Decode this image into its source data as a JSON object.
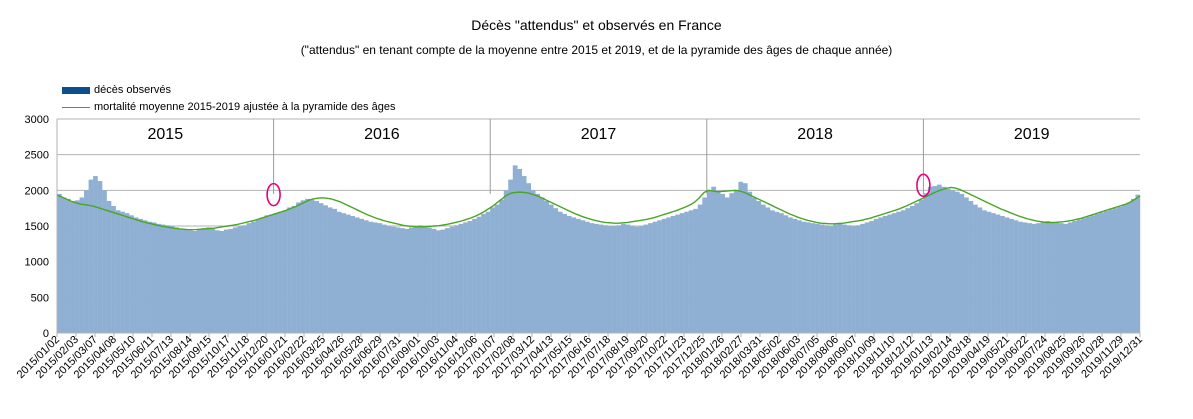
{
  "chart_data": {
    "type": "bar",
    "title": "Décès \"attendus\" et observés en France",
    "subtitle": "(\"attendus\" en tenant compte de la moyenne entre 2015 et 2019, et de la pyramide des âges de chaque année)",
    "xlabel": "",
    "ylabel": "",
    "ylim": [
      0,
      3000
    ],
    "yticks": [
      0,
      500,
      1000,
      1500,
      2000,
      2500,
      3000
    ],
    "grid": true,
    "legend_position": "top-left",
    "x_range": [
      "2015/01/02",
      "2019/12/31"
    ],
    "year_labels": [
      "2015",
      "2016",
      "2017",
      "2018",
      "2019"
    ],
    "x_tick_labels": [
      "2015/01/02",
      "2015/02/03",
      "2015/03/07",
      "2015/04/08",
      "2015/05/10",
      "2015/06/11",
      "2015/07/13",
      "2015/08/14",
      "2015/09/15",
      "2015/10/17",
      "2015/11/18",
      "2015/12/20",
      "2016/01/21",
      "2016/02/22",
      "2016/03/25",
      "2016/04/26",
      "2016/05/28",
      "2016/06/29",
      "2016/07/31",
      "2016/09/01",
      "2016/10/03",
      "2016/11/04",
      "2016/12/06",
      "2017/01/07",
      "2017/02/08",
      "2017/03/12",
      "2017/04/13",
      "2017/05/15",
      "2017/06/16",
      "2017/07/18",
      "2017/08/19",
      "2017/09/20",
      "2017/10/22",
      "2017/11/23",
      "2017/12/25",
      "2018/01/26",
      "2018/02/27",
      "2018/03/31",
      "2018/05/02",
      "2018/06/03",
      "2018/07/05",
      "2018/08/06",
      "2018/09/07",
      "2018/10/09",
      "2018/11/10",
      "2018/12/12",
      "2019/01/13",
      "2019/02/14",
      "2019/03/18",
      "2019/04/19",
      "2019/05/21",
      "2019/06/22",
      "2019/07/24",
      "2019/08/25",
      "2019/09/26",
      "2019/10/28",
      "2019/11/29",
      "2019/12/31"
    ],
    "series": [
      {
        "name": "décès observés",
        "type": "bar",
        "color": "#0b4f8c",
        "bar_fill": "#8fb0d3",
        "weekly_values": [
          1950,
          1900,
          1880,
          1850,
          1860,
          1900,
          2000,
          2150,
          2200,
          2130,
          2000,
          1850,
          1780,
          1720,
          1700,
          1680,
          1650,
          1620,
          1600,
          1580,
          1560,
          1550,
          1530,
          1520,
          1510,
          1500,
          1480,
          1460,
          1450,
          1440,
          1430,
          1450,
          1470,
          1480,
          1460,
          1440,
          1430,
          1450,
          1460,
          1480,
          1500,
          1510,
          1540,
          1560,
          1590,
          1620,
          1650,
          1660,
          1680,
          1700,
          1720,
          1760,
          1780,
          1830,
          1860,
          1880,
          1870,
          1850,
          1820,
          1790,
          1760,
          1740,
          1700,
          1680,
          1660,
          1640,
          1620,
          1600,
          1580,
          1560,
          1550,
          1540,
          1520,
          1500,
          1490,
          1480,
          1470,
          1460,
          1480,
          1500,
          1510,
          1500,
          1480,
          1460,
          1440,
          1450,
          1470,
          1490,
          1510,
          1530,
          1550,
          1570,
          1600,
          1630,
          1670,
          1700,
          1760,
          1800,
          1870,
          2000,
          2150,
          2350,
          2300,
          2200,
          2100,
          2000,
          1950,
          1900,
          1850,
          1800,
          1750,
          1700,
          1670,
          1640,
          1620,
          1600,
          1580,
          1560,
          1540,
          1530,
          1520,
          1510,
          1500,
          1500,
          1510,
          1530,
          1520,
          1500,
          1490,
          1500,
          1520,
          1540,
          1560,
          1580,
          1600,
          1620,
          1640,
          1660,
          1680,
          1700,
          1720,
          1740,
          1800,
          1900,
          2000,
          2050,
          1980,
          1950,
          1900,
          1960,
          2000,
          2120,
          2100,
          1980,
          1900,
          1850,
          1800,
          1760,
          1720,
          1700,
          1680,
          1650,
          1620,
          1600,
          1580,
          1560,
          1550,
          1540,
          1530,
          1520,
          1510,
          1500,
          1520,
          1530,
          1520,
          1510,
          1500,
          1510,
          1530,
          1550,
          1570,
          1600,
          1620,
          1640,
          1660,
          1680,
          1700,
          1720,
          1750,
          1780,
          1820,
          1870,
          1960,
          2050,
          2060,
          2080,
          2050,
          2020,
          2000,
          1980,
          1950,
          1900,
          1850,
          1800,
          1760,
          1720,
          1700,
          1680,
          1660,
          1640,
          1620,
          1600,
          1580,
          1560,
          1550,
          1540,
          1530,
          1540,
          1560,
          1570,
          1560,
          1550,
          1540,
          1530,
          1550,
          1570,
          1590,
          1610,
          1630,
          1650,
          1670,
          1690,
          1710,
          1730,
          1750,
          1770,
          1800,
          1830,
          1880,
          1940
        ]
      },
      {
        "name": "mortalité moyenne 2015-2019 ajustée à la pyramide des âges",
        "type": "line",
        "color": "#4aa524",
        "weekly_values": [
          1930,
          1910,
          1880,
          1850,
          1830,
          1810,
          1800,
          1790,
          1780,
          1760,
          1740,
          1720,
          1700,
          1680,
          1660,
          1640,
          1620,
          1600,
          1580,
          1560,
          1545,
          1530,
          1515,
          1500,
          1490,
          1480,
          1470,
          1460,
          1455,
          1450,
          1448,
          1450,
          1455,
          1460,
          1465,
          1470,
          1480,
          1490,
          1500,
          1510,
          1520,
          1535,
          1550,
          1565,
          1580,
          1600,
          1620,
          1640,
          1660,
          1680,
          1700,
          1720,
          1745,
          1770,
          1800,
          1830,
          1860,
          1880,
          1890,
          1895,
          1890,
          1880,
          1860,
          1840,
          1810,
          1780,
          1750,
          1720,
          1690,
          1660,
          1635,
          1610,
          1590,
          1570,
          1555,
          1540,
          1525,
          1510,
          1500,
          1495,
          1490,
          1488,
          1490,
          1495,
          1500,
          1505,
          1515,
          1525,
          1540,
          1555,
          1570,
          1590,
          1610,
          1635,
          1665,
          1700,
          1740,
          1780,
          1830,
          1880,
          1930,
          1960,
          1970,
          1975,
          1970,
          1960,
          1940,
          1920,
          1890,
          1860,
          1830,
          1800,
          1770,
          1740,
          1710,
          1680,
          1655,
          1630,
          1610,
          1590,
          1575,
          1560,
          1550,
          1545,
          1540,
          1540,
          1545,
          1550,
          1560,
          1570,
          1580,
          1590,
          1605,
          1620,
          1640,
          1660,
          1680,
          1700,
          1720,
          1745,
          1770,
          1800,
          1840,
          1900,
          1970,
          2000,
          1990,
          1980,
          1985,
          1990,
          1995,
          2000,
          1990,
          1970,
          1940,
          1910,
          1880,
          1850,
          1820,
          1790,
          1760,
          1730,
          1700,
          1670,
          1645,
          1620,
          1600,
          1580,
          1565,
          1550,
          1540,
          1535,
          1530,
          1530,
          1535,
          1540,
          1550,
          1560,
          1570,
          1580,
          1595,
          1610,
          1630,
          1650,
          1670,
          1690,
          1710,
          1730,
          1755,
          1780,
          1810,
          1840,
          1870,
          1900,
          1930,
          1960,
          1990,
          2010,
          2030,
          2040,
          2030,
          2010,
          1980,
          1950,
          1920,
          1890,
          1860,
          1830,
          1800,
          1770,
          1740,
          1715,
          1690,
          1665,
          1640,
          1620,
          1600,
          1585,
          1570,
          1560,
          1550,
          1548,
          1550,
          1555,
          1560,
          1570,
          1580,
          1595,
          1610,
          1630,
          1650,
          1670,
          1690,
          1710,
          1730,
          1750,
          1770,
          1790,
          1810,
          1840,
          1880,
          1920
        ]
      }
    ]
  },
  "legend": {
    "observed_label": "décès observés",
    "expected_label": "mortalité moyenne 2015-2019 ajustée à la pyramide des âges"
  },
  "highlights": {
    "circle_color": "#e6007e",
    "count": 2
  }
}
